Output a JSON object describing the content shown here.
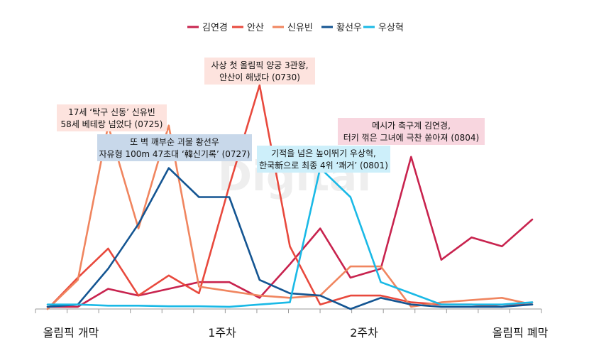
{
  "chart_data": {
    "type": "line",
    "legend_position": "top",
    "watermark": "Digital",
    "x_ticks": [
      "올림픽 개막",
      "1주차",
      "2주차",
      "올림픽 폐막"
    ],
    "ylim": [
      0,
      100
    ],
    "grid": false,
    "series": [
      {
        "name": "김연경",
        "color": "#c8234e",
        "values": [
          1,
          1,
          9,
          6,
          9,
          12,
          12,
          5,
          20,
          36,
          14,
          18,
          68,
          22,
          32,
          28,
          40
        ]
      },
      {
        "name": "안산",
        "color": "#e8493d",
        "values": [
          0,
          14,
          27,
          6,
          15,
          7,
          55,
          100,
          28,
          2,
          6,
          6,
          3,
          2,
          2,
          1,
          3
        ]
      },
      {
        "name": "신유빈",
        "color": "#f0855f",
        "values": [
          0,
          13,
          82,
          36,
          82,
          10,
          8,
          6,
          5,
          6,
          19,
          19,
          1,
          3,
          4,
          5,
          2
        ]
      },
      {
        "name": "황선우",
        "color": "#145592",
        "values": [
          1,
          2,
          18,
          38,
          63,
          50,
          50,
          13,
          7,
          6,
          0,
          5,
          2,
          1,
          1,
          1,
          2
        ]
      },
      {
        "name": "우상혁",
        "color": "#1ab9e6",
        "values": [
          2,
          2,
          1.5,
          1.5,
          1.2,
          1.2,
          1,
          2,
          3,
          63,
          50,
          12,
          7,
          2,
          2,
          2,
          3
        ]
      }
    ],
    "annotations": [
      {
        "id": "sinyubin",
        "lines": [
          "17세 ‘탁구 신동’ 신유빈",
          "58세 베테랑 넘었다 (0725)"
        ]
      },
      {
        "id": "hwangseonwoo",
        "lines": [
          "또 벽 깨부순 괴물 황선우",
          "자유형 100m 47초대 ‘韓신기록’ (0727)"
        ]
      },
      {
        "id": "ansan",
        "lines": [
          "사상 첫 올림픽 양궁 3관왕,",
          "안산이 해냈다 (0730)"
        ]
      },
      {
        "id": "wusanghyeok",
        "lines": [
          "기적을 넘은 높이뛰기 우상혁,",
          "한국新으로 최종 4위 ‘쾌거’ (0801)"
        ]
      },
      {
        "id": "kimyeongyeong",
        "lines": [
          "메시가 축구계 김연경,",
          "터키 꺾은 그녀에 극찬 쏟아져 (0804)"
        ]
      }
    ]
  }
}
